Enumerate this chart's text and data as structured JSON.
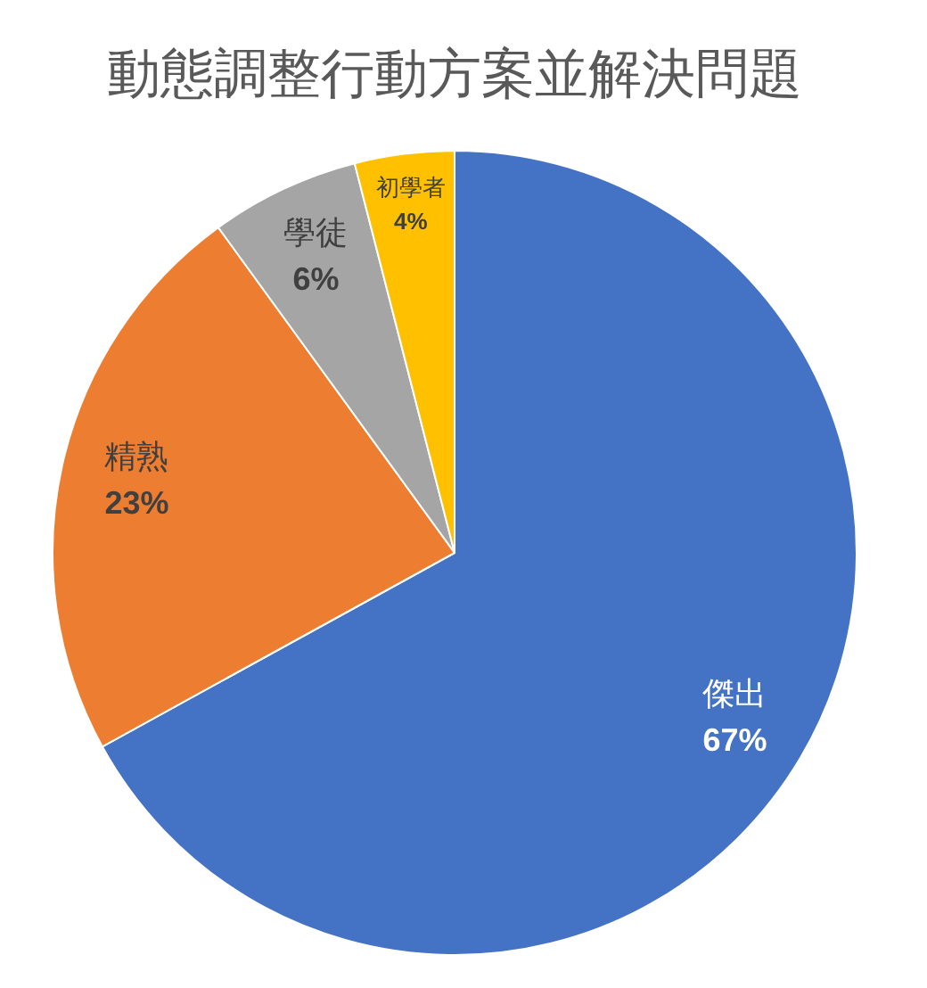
{
  "chart_data": {
    "type": "pie",
    "title": "動態調整行動方案並解決問題",
    "categories": [
      "傑出",
      "精熟",
      "學徒",
      "初學者"
    ],
    "values": [
      67,
      23,
      6,
      4
    ],
    "colors": [
      "#4472c4",
      "#ed7d31",
      "#a5a5a5",
      "#ffc000"
    ],
    "value_labels": [
      "67%",
      "23%",
      "6%",
      "4%"
    ]
  }
}
